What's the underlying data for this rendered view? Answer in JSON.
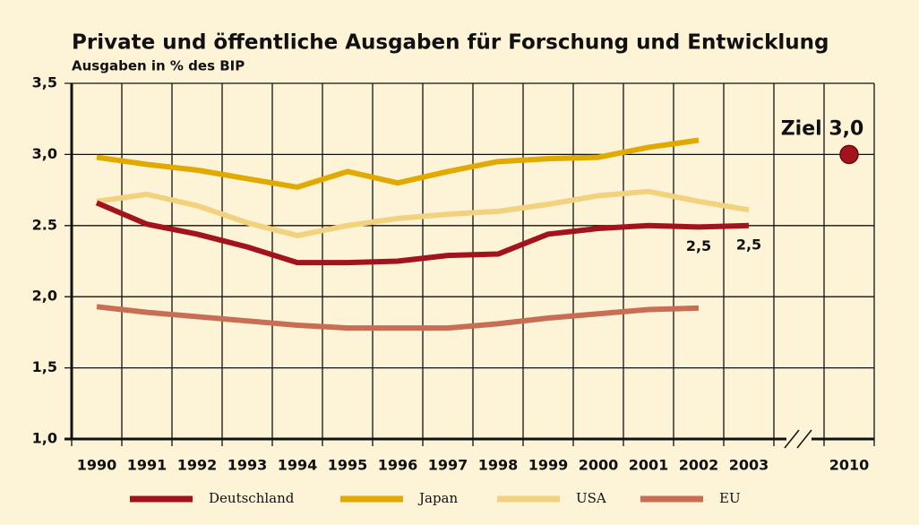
{
  "chart_data": {
    "type": "line",
    "title": "Private und öffentliche Ausgaben für Forschung und Entwicklung",
    "subtitle": "Ausgaben in % des BIP",
    "categories": [
      "1990",
      "1991",
      "1992",
      "1993",
      "1994",
      "1995",
      "1996",
      "1997",
      "1998",
      "1999",
      "2000",
      "2001",
      "2002",
      "2003",
      null,
      "2010"
    ],
    "series": [
      {
        "name": "Deutschland",
        "color": "#a3131c",
        "values": [
          2.66,
          2.51,
          2.44,
          2.35,
          2.24,
          2.24,
          2.25,
          2.29,
          2.3,
          2.44,
          2.48,
          2.5,
          2.49,
          2.5,
          null,
          null
        ],
        "value_labels": [
          null,
          null,
          null,
          null,
          null,
          null,
          null,
          null,
          null,
          null,
          null,
          null,
          "2,5",
          "2,5",
          null,
          null
        ]
      },
      {
        "name": "Japan",
        "color": "#e0aa00",
        "values": [
          2.98,
          2.93,
          2.89,
          2.83,
          2.77,
          2.88,
          2.8,
          2.88,
          2.95,
          2.97,
          2.98,
          3.05,
          3.1,
          null,
          null,
          null
        ]
      },
      {
        "name": "USA",
        "color": "#f2d27e",
        "values": [
          2.67,
          2.72,
          2.64,
          2.52,
          2.43,
          2.5,
          2.55,
          2.58,
          2.6,
          2.65,
          2.71,
          2.74,
          2.67,
          2.61,
          null,
          null
        ]
      },
      {
        "name": "EU",
        "color": "#c86e55",
        "values": [
          1.93,
          1.89,
          1.86,
          1.83,
          1.8,
          1.78,
          1.78,
          1.78,
          1.81,
          1.85,
          1.88,
          1.91,
          1.92,
          null,
          null,
          null
        ]
      }
    ],
    "target": {
      "color": "#a3131c",
      "values": [
        null,
        null,
        null,
        null,
        null,
        null,
        null,
        null,
        null,
        null,
        null,
        null,
        null,
        2.5,
        null,
        3.0
      ]
    },
    "annotation": "Ziel 3,0",
    "ylim": [
      1.0,
      3.5
    ],
    "yticks": [
      {
        "value": 1.0,
        "label": "1,0"
      },
      {
        "value": 1.5,
        "label": "1,5"
      },
      {
        "value": 2.0,
        "label": "2,0"
      },
      {
        "value": 2.5,
        "label": "2.5"
      },
      {
        "value": 3.0,
        "label": "3,0"
      },
      {
        "value": 3.5,
        "label": "3,5"
      }
    ],
    "grid": true,
    "legend": "bottom"
  }
}
